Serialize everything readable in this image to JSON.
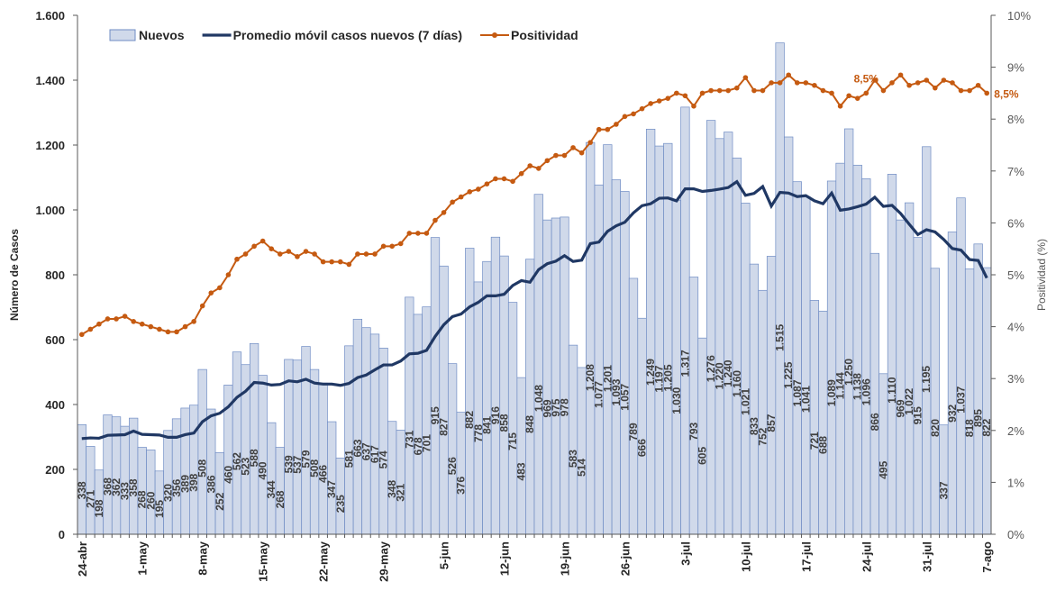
{
  "chart_data": {
    "type": "bar",
    "categories": [
      "24-abr",
      null,
      null,
      null,
      null,
      null,
      null,
      "1-may",
      null,
      null,
      null,
      null,
      null,
      null,
      "8-may",
      null,
      null,
      null,
      null,
      null,
      null,
      "15-may",
      null,
      null,
      null,
      null,
      null,
      null,
      "22-may",
      null,
      null,
      null,
      null,
      null,
      null,
      "29-may",
      null,
      null,
      null,
      null,
      null,
      null,
      "5-jun",
      null,
      null,
      null,
      null,
      null,
      null,
      "12-jun",
      null,
      null,
      null,
      null,
      null,
      null,
      "19-jun",
      null,
      null,
      null,
      null,
      null,
      null,
      "26-jun",
      null,
      null,
      null,
      null,
      null,
      null,
      "3-jul",
      null,
      null,
      null,
      null,
      null,
      null,
      "10-jul",
      null,
      null,
      null,
      null,
      null,
      null,
      "17-jul",
      null,
      null,
      null,
      null,
      null,
      null,
      "24-jul",
      null,
      null,
      null,
      null,
      null,
      null,
      "31-jul",
      null,
      null,
      null,
      null,
      null,
      null,
      "7-ago"
    ],
    "series": [
      {
        "name": "Nuevos",
        "type": "bar",
        "color": "#d0d9ea",
        "values": [
          338,
          271,
          198,
          368,
          362,
          333,
          358,
          268,
          260,
          195,
          320,
          356,
          389,
          398,
          508,
          386,
          252,
          460,
          562,
          523,
          588,
          490,
          344,
          268,
          539,
          537,
          579,
          508,
          466,
          347,
          235,
          581,
          663,
          637,
          617,
          574,
          348,
          321,
          731,
          678,
          701,
          915,
          827,
          526,
          376,
          882,
          778,
          841,
          916,
          858,
          715,
          483,
          848,
          1048,
          969,
          975,
          978,
          583,
          514,
          1208,
          1077,
          1201,
          1093,
          1057,
          789,
          666,
          1249,
          1197,
          1205,
          1030,
          1317,
          793,
          605,
          1276,
          1220,
          1240,
          1160,
          1021,
          833,
          752,
          857,
          1515,
          1225,
          1087,
          1041,
          721,
          688,
          1089,
          1144,
          1250,
          1138,
          1096,
          866,
          495,
          1110,
          969,
          1022,
          915,
          1195,
          820,
          337,
          932,
          1037,
          818,
          895,
          822
        ],
        "value_labels": [
          "338",
          "271",
          "198",
          "368",
          "362",
          "333",
          "358",
          "268",
          "260",
          "195",
          "320",
          "356",
          "389",
          "398",
          "508",
          "386",
          "252",
          "460",
          "562",
          "523",
          "588",
          "490",
          "344",
          "268",
          "539",
          "537",
          "579",
          "508",
          "466",
          "347",
          "235",
          "581",
          "663",
          "637",
          "617",
          "574",
          "348",
          "321",
          "731",
          "678",
          "701",
          "915",
          "827",
          "526",
          "376",
          "882",
          "778",
          "841",
          "916",
          "858",
          "715",
          "483",
          "848",
          "1.048",
          "969",
          "975",
          "978",
          "583",
          "514",
          "1.208",
          "1.077",
          "1.201",
          "1.093",
          "1.057",
          "789",
          "666",
          "1.249",
          "1.197",
          "1.205",
          "1.030",
          "1.317",
          "793",
          "605",
          "1.276",
          "1.220",
          "1.240",
          "1.160",
          "1.021",
          "833",
          "752",
          "857",
          "1.515",
          "1.225",
          "1.087",
          "1.041",
          "721",
          "688",
          "1.089",
          "1.144",
          "1.250",
          "1.138",
          "1.096",
          "866",
          "495",
          "1.110",
          "969",
          "1.022",
          "915",
          "1.195",
          "820",
          "337",
          "932",
          "1.037",
          "818",
          "895",
          "822"
        ]
      },
      {
        "name": "Promedio móvil casos nuevos (7 días)",
        "type": "line",
        "color": "#203864",
        "values": [
          295,
          297,
          296,
          305,
          306,
          307,
          318,
          308,
          307,
          306,
          299,
          299,
          307,
          312,
          347,
          365,
          373,
          393,
          422,
          441,
          468,
          466,
          460,
          462,
          473,
          470,
          478,
          466,
          463,
          463,
          459,
          465,
          483,
          491,
          507,
          522,
          522,
          534,
          556,
          558,
          567,
          610,
          646,
          671,
          679,
          701,
          715,
          735,
          735,
          740,
          767,
          782,
          777,
          816,
          834,
          842,
          859,
          841,
          845,
          896,
          901,
          934,
          951,
          962,
          991,
          1013,
          1019,
          1036,
          1037,
          1028,
          1065,
          1065,
          1057,
          1060,
          1064,
          1069,
          1087,
          1045,
          1051,
          1072,
          1012,
          1054,
          1052,
          1041,
          1044,
          1028,
          1019,
          1052,
          999,
          1003,
          1010,
          1018,
          1039,
          1011,
          1014,
          989,
          956,
          924,
          939,
          932,
          909,
          881,
          876,
          847,
          844,
          790
        ]
      },
      {
        "name": "Positividad",
        "type": "line",
        "axis": "y2",
        "color": "#c55a11",
        "values": [
          3.85,
          3.95,
          4.05,
          4.15,
          4.15,
          4.2,
          4.1,
          4.05,
          4.0,
          3.95,
          3.9,
          3.9,
          4.0,
          4.1,
          4.4,
          4.65,
          4.75,
          5.0,
          5.3,
          5.4,
          5.55,
          5.65,
          5.5,
          5.4,
          5.45,
          5.35,
          5.45,
          5.4,
          5.25,
          5.25,
          5.25,
          5.2,
          5.4,
          5.4,
          5.4,
          5.55,
          5.55,
          5.6,
          5.8,
          5.8,
          5.8,
          6.05,
          6.2,
          6.4,
          6.5,
          6.6,
          6.65,
          6.75,
          6.85,
          6.85,
          6.8,
          6.95,
          7.1,
          7.05,
          7.2,
          7.3,
          7.3,
          7.45,
          7.35,
          7.55,
          7.8,
          7.8,
          7.9,
          8.05,
          8.1,
          8.2,
          8.3,
          8.35,
          8.4,
          8.5,
          8.45,
          8.25,
          8.5,
          8.55,
          8.55,
          8.55,
          8.6,
          8.8,
          8.55,
          8.55,
          8.7,
          8.7,
          8.85,
          8.7,
          8.7,
          8.65,
          8.55,
          8.5,
          8.25,
          8.45,
          8.4,
          8.5,
          8.75,
          8.55,
          8.7,
          8.85,
          8.65,
          8.7,
          8.75,
          8.6,
          8.75,
          8.7,
          8.55,
          8.55,
          8.65,
          8.5
        ],
        "value_labels": [
          null,
          null,
          null,
          null,
          null,
          null,
          null,
          null,
          null,
          null,
          null,
          null,
          null,
          null,
          null,
          null,
          null,
          null,
          null,
          null,
          null,
          null,
          null,
          null,
          null,
          null,
          null,
          null,
          null,
          null,
          null,
          null,
          null,
          null,
          null,
          null,
          null,
          null,
          null,
          null,
          null,
          null,
          null,
          null,
          null,
          null,
          null,
          null,
          null,
          null,
          null,
          null,
          null,
          null,
          null,
          null,
          null,
          null,
          null,
          null,
          null,
          null,
          null,
          null,
          null,
          null,
          null,
          null,
          null,
          null,
          null,
          null,
          null,
          null,
          null,
          null,
          null,
          null,
          null,
          null,
          null,
          null,
          null,
          null,
          null,
          null,
          null,
          null,
          null,
          null,
          null,
          "8,5%",
          null,
          null,
          null,
          null,
          null,
          null,
          null,
          null,
          null,
          null,
          null,
          null,
          null,
          "8,5%"
        ]
      }
    ],
    "y_label": "Número de Casos",
    "y2_label": "Positividad (%)",
    "ylim": [
      0,
      1600
    ],
    "yticks": [
      0,
      200,
      400,
      600,
      800,
      {
        "value": 1000,
        "label": "1.000"
      },
      {
        "value": 1200,
        "label": "1.200"
      },
      {
        "value": 1400,
        "label": "1.400"
      },
      {
        "value": 1600,
        "label": "1.600"
      }
    ],
    "y2lim": [
      0,
      10
    ],
    "y2ticks": [
      {
        "value": 0,
        "label": "0%"
      },
      {
        "value": 1,
        "label": "1%"
      },
      {
        "value": 2,
        "label": "2%"
      },
      {
        "value": 3,
        "label": "3%"
      },
      {
        "value": 4,
        "label": "4%"
      },
      {
        "value": 5,
        "label": "5%"
      },
      {
        "value": 6,
        "label": "6%"
      },
      {
        "value": 7,
        "label": "7%"
      },
      {
        "value": 8,
        "label": "8%"
      },
      {
        "value": 9,
        "label": "9%"
      },
      {
        "value": 10,
        "label": "10%"
      }
    ],
    "grid": false,
    "legend": "top"
  }
}
